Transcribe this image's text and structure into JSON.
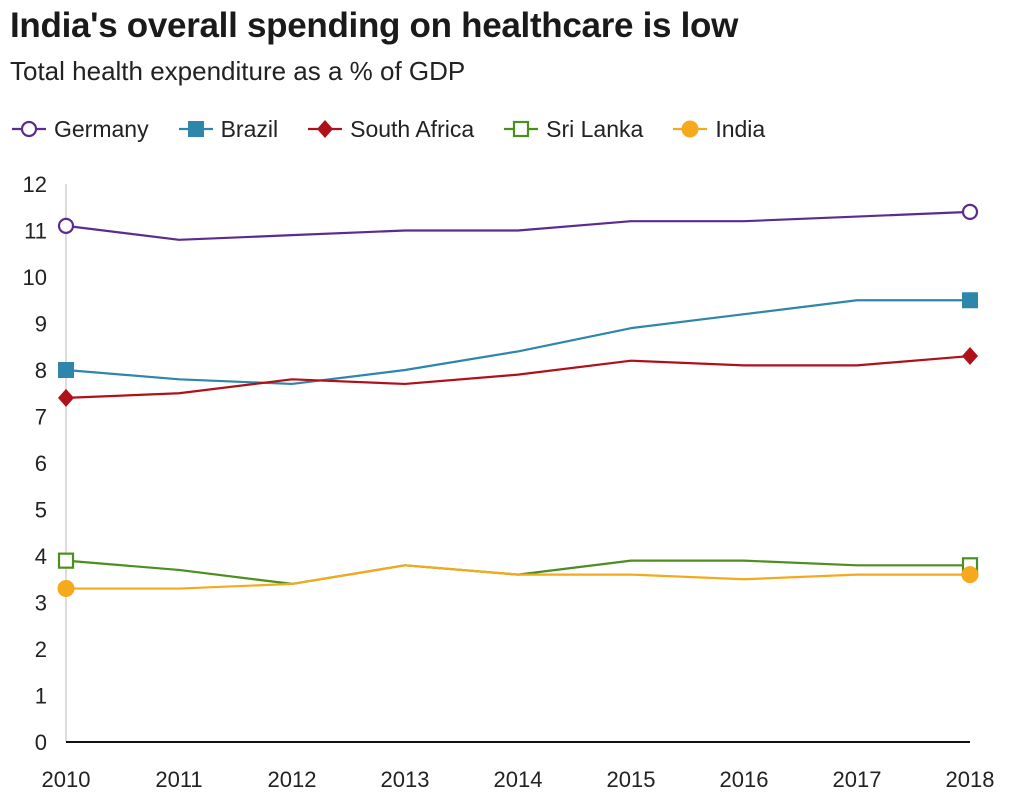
{
  "title": "India's overall spending on healthcare is low",
  "subtitle": "Total health expenditure as a % of GDP",
  "chart_data": {
    "type": "line",
    "title": "India's overall spending on healthcare is low",
    "subtitle": "Total health expenditure as a % of GDP",
    "xlabel": "",
    "ylabel": "",
    "x": [
      "2010",
      "2011",
      "2012",
      "2013",
      "2014",
      "2015",
      "2016",
      "2017",
      "2018"
    ],
    "ylim": [
      0,
      12
    ],
    "yticks": [
      0,
      1,
      2,
      3,
      4,
      5,
      6,
      7,
      8,
      9,
      10,
      11,
      12
    ],
    "grid": false,
    "legend_position": "top",
    "series": [
      {
        "name": "Germany",
        "color": "#5b2c8f",
        "marker": "open-circle",
        "values": [
          11.1,
          10.8,
          10.9,
          11.0,
          11.0,
          11.2,
          11.2,
          11.3,
          11.4
        ]
      },
      {
        "name": "Brazil",
        "color": "#2e86ab",
        "marker": "filled-square",
        "values": [
          8.0,
          7.8,
          7.7,
          8.0,
          8.4,
          8.9,
          9.2,
          9.5,
          9.5
        ]
      },
      {
        "name": "South Africa",
        "color": "#b0101a",
        "marker": "filled-diamond",
        "values": [
          7.4,
          7.5,
          7.8,
          7.7,
          7.9,
          8.2,
          8.1,
          8.1,
          8.3
        ]
      },
      {
        "name": "Sri Lanka",
        "color": "#4b8f1f",
        "marker": "open-square",
        "values": [
          3.9,
          3.7,
          3.4,
          3.8,
          3.6,
          3.9,
          3.9,
          3.8,
          3.8
        ]
      },
      {
        "name": "India",
        "color": "#f4aa1c",
        "marker": "filled-circle",
        "values": [
          3.3,
          3.3,
          3.4,
          3.8,
          3.6,
          3.6,
          3.5,
          3.6,
          3.6
        ]
      }
    ]
  }
}
